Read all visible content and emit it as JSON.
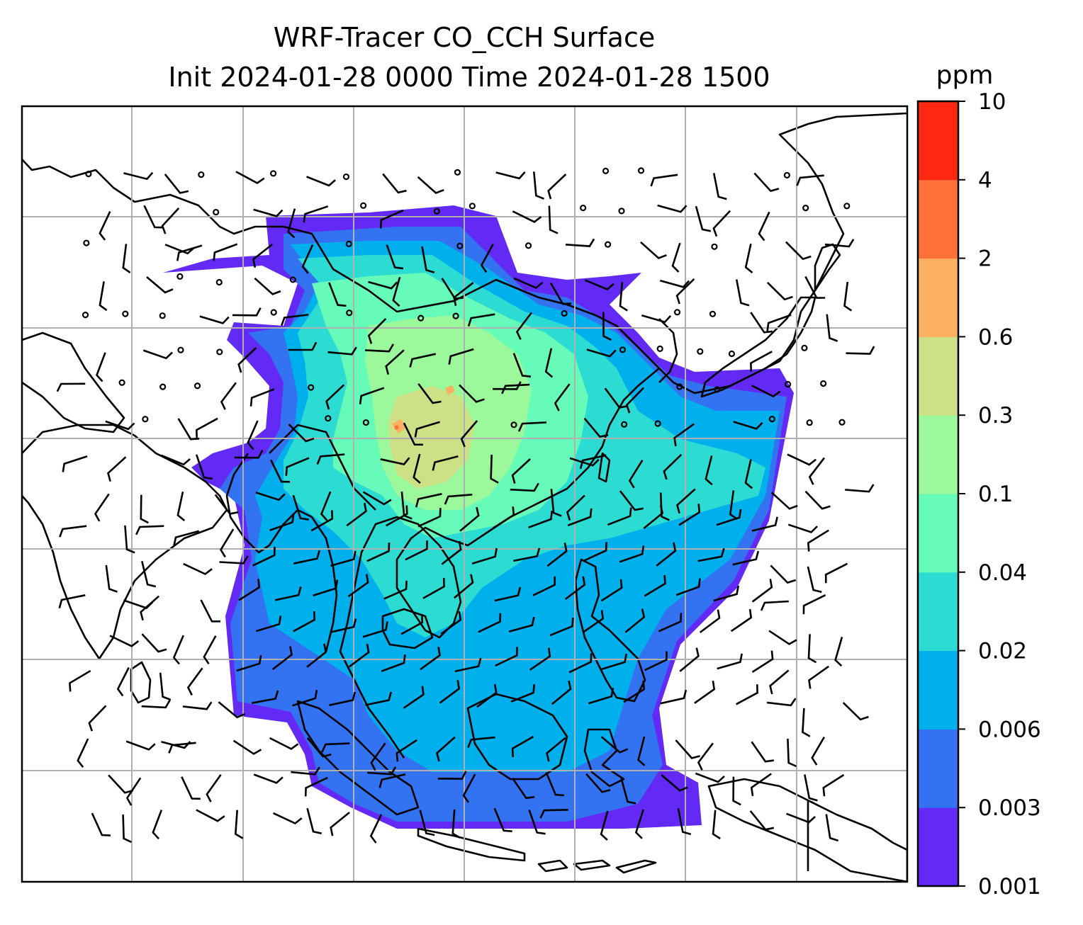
{
  "title_line1": "WRF-Tracer CO_CCH Surface",
  "title_line2": "Init 2024-01-28 0000 Time 2024-01-28 1500",
  "colorbar": {
    "unit": "ppm",
    "tick_labels": [
      "0.001",
      "0.003",
      "0.006",
      "0.02",
      "0.04",
      "0.1",
      "0.3",
      "0.6",
      "2",
      "4",
      "10"
    ],
    "colors": [
      "#6329f5",
      "#3373f2",
      "#00b0ec",
      "#2cdcd2",
      "#66fbb8",
      "#9bf99b",
      "#cde085",
      "#fdb062",
      "#ff7139",
      "#fe2712"
    ]
  },
  "colors": {
    "land_outline": "#000000",
    "gridlines": "#b0b0b0",
    "ocean": "#ffffff"
  }
}
